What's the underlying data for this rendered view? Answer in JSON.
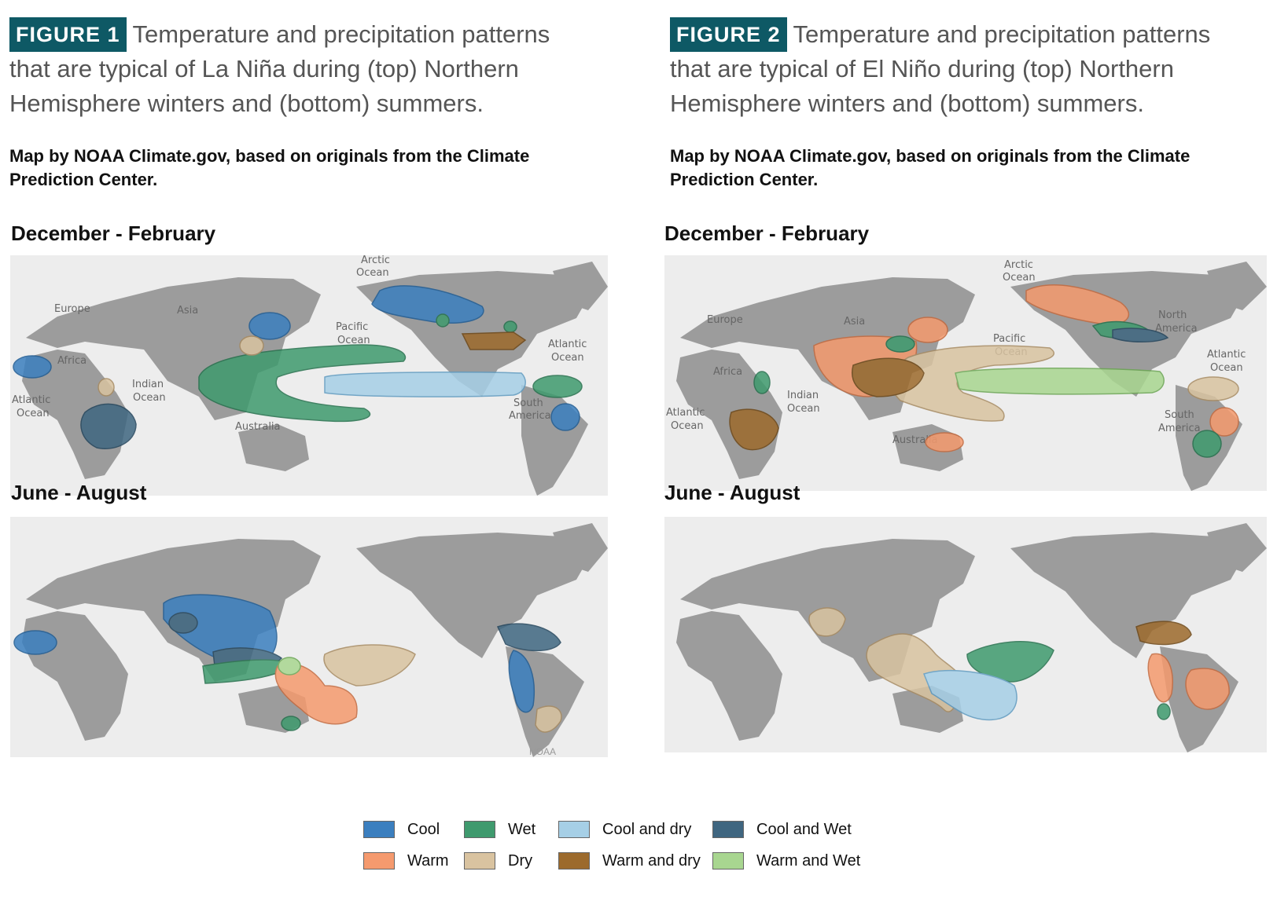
{
  "figures": [
    {
      "badge": "FIGURE 1",
      "caption": "Temperature and precipitation patterns that are typical of La Niña during (top) Northern Hemisphere winters and (bottom) summers.",
      "credit": "Map by NOAA Climate.gov, based on originals from the Climate Prediction Center.",
      "top_season": "December - February",
      "bottom_season": "June - August",
      "watermark": "NOAA Climate.gov"
    },
    {
      "badge": "FIGURE 2",
      "caption": "Temperature and precipitation patterns that are typical of El Niño during (top) Northern Hemisphere winters and (bottom) summers.",
      "credit": "Map by NOAA Climate.gov, based on originals from the Climate Prediction Center.",
      "top_season": "December - February",
      "bottom_season": "June - August"
    }
  ],
  "map_labels": {
    "arctic": [
      "Arctic",
      "Ocean"
    ],
    "pacific": [
      "Pacific",
      "Ocean"
    ],
    "atlantic_ne": [
      "Atlantic",
      "Ocean"
    ],
    "atlantic_sw": [
      "Atlantic",
      "Ocean"
    ],
    "indian": [
      "Indian",
      "Ocean"
    ],
    "europe": "Europe",
    "asia": "Asia",
    "africa": "Africa",
    "australia": "Australia",
    "north_america": [
      "North",
      "America"
    ],
    "south_america": [
      "South",
      "America"
    ]
  },
  "colors": {
    "cool": "#3b7fbf",
    "wet": "#3f9a6e",
    "cool_and_dry": "#a6cfe6",
    "cool_and_wet": "#3f6680",
    "warm": "#f59a6e",
    "dry": "#d9c3a0",
    "warm_and_dry": "#9c6a2c",
    "warm_and_wet": "#a8d690"
  },
  "legend": [
    {
      "label": "Cool",
      "color_key": "cool"
    },
    {
      "label": "Wet",
      "color_key": "wet"
    },
    {
      "label": "Cool and dry",
      "color_key": "cool_and_dry"
    },
    {
      "label": "Cool and Wet",
      "color_key": "cool_and_wet"
    },
    {
      "label": "Warm",
      "color_key": "warm"
    },
    {
      "label": "Dry",
      "color_key": "dry"
    },
    {
      "label": "Warm and dry",
      "color_key": "warm_and_dry"
    },
    {
      "label": "Warm and Wet",
      "color_key": "warm_and_wet"
    }
  ]
}
